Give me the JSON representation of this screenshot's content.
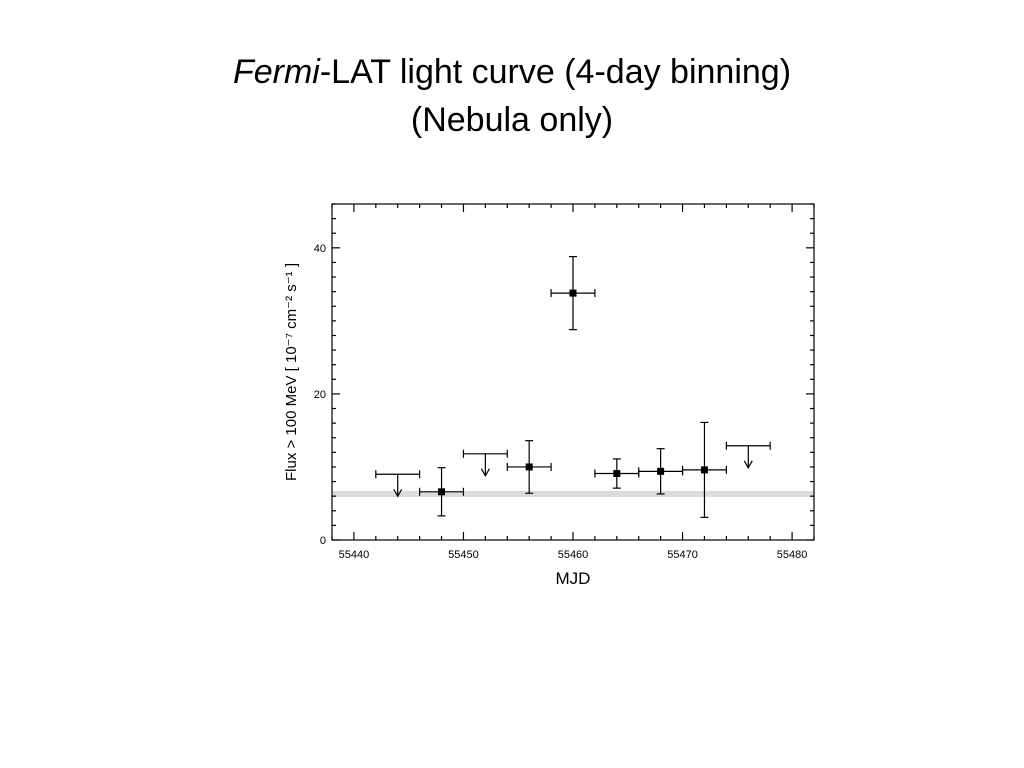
{
  "slide": {
    "title_italic": "Fermi",
    "title_rest": "-LAT light curve (4-day binning)",
    "subtitle": "(Nebula only)"
  },
  "chart_data": {
    "type": "scatter",
    "xlabel": "MJD",
    "ylabel": "Flux > 100 MeV [ 10⁻⁷ cm⁻² s⁻¹ ]",
    "xlim": [
      55438,
      55482
    ],
    "ylim": [
      0,
      46
    ],
    "xticks": [
      55440,
      55450,
      55460,
      55470,
      55480
    ],
    "yticks": [
      0,
      20,
      40
    ],
    "grid": false,
    "points": [
      {
        "x": 55448,
        "y": 6.6,
        "xerr": 2,
        "yerr_low": 3.3,
        "yerr_high": 3.3
      },
      {
        "x": 55456,
        "y": 10.0,
        "xerr": 2,
        "yerr_low": 3.6,
        "yerr_high": 3.6
      },
      {
        "x": 55460,
        "y": 33.8,
        "xerr": 2,
        "yerr_low": 5.0,
        "yerr_high": 5.0
      },
      {
        "x": 55464,
        "y": 9.1,
        "xerr": 2,
        "yerr_low": 2.0,
        "yerr_high": 2.0
      },
      {
        "x": 55468,
        "y": 9.4,
        "xerr": 2,
        "yerr_low": 3.1,
        "yerr_high": 3.1
      },
      {
        "x": 55472,
        "y": 9.6,
        "xerr": 2,
        "yerr_low": 6.5,
        "yerr_high": 6.5
      }
    ],
    "upper_limits": [
      {
        "x": 55444,
        "y": 9.0,
        "xerr": 2
      },
      {
        "x": 55452,
        "y": 11.8,
        "xerr": 2
      },
      {
        "x": 55476,
        "y": 12.9,
        "xerr": 2
      }
    ],
    "baseline": {
      "y": 6.3,
      "color": "#dcdcdc"
    }
  }
}
